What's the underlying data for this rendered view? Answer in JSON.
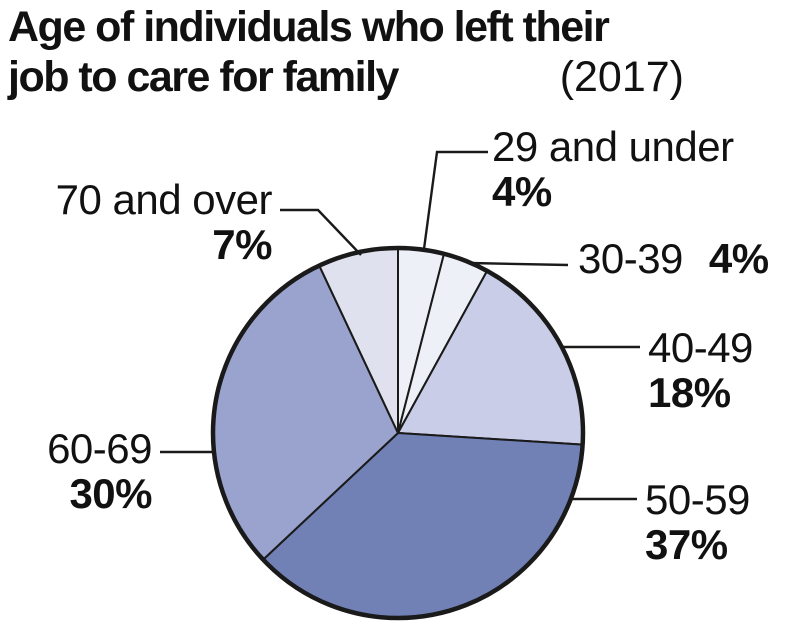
{
  "title_lines": {
    "line1": "Age of individuals who left their",
    "line2": "job to care for family"
  },
  "year_label": "(2017)",
  "chart_data": {
    "type": "pie",
    "title": "Age of individuals who left their job to care for family (2017)",
    "start_angle_deg": 0,
    "direction": "clockwise",
    "stroke_color": "#1a1a1a",
    "slices": [
      {
        "id": "29-and-under",
        "label": "29 and under",
        "value": 4,
        "pct": "4%",
        "color": "#eef0f7"
      },
      {
        "id": "30-39",
        "label": "30-39",
        "value": 4,
        "pct": "4%",
        "color": "#eef0f7"
      },
      {
        "id": "40-49",
        "label": "40-49",
        "value": 18,
        "pct": "18%",
        "color": "#c9cde7"
      },
      {
        "id": "50-59",
        "label": "50-59",
        "value": 37,
        "pct": "37%",
        "color": "#7181b6"
      },
      {
        "id": "60-69",
        "label": "60-69",
        "value": 30,
        "pct": "30%",
        "color": "#99a3cd"
      },
      {
        "id": "70-and-over",
        "label": "70 and over",
        "value": 7,
        "pct": "7%",
        "color": "#dfe1ee"
      }
    ]
  }
}
